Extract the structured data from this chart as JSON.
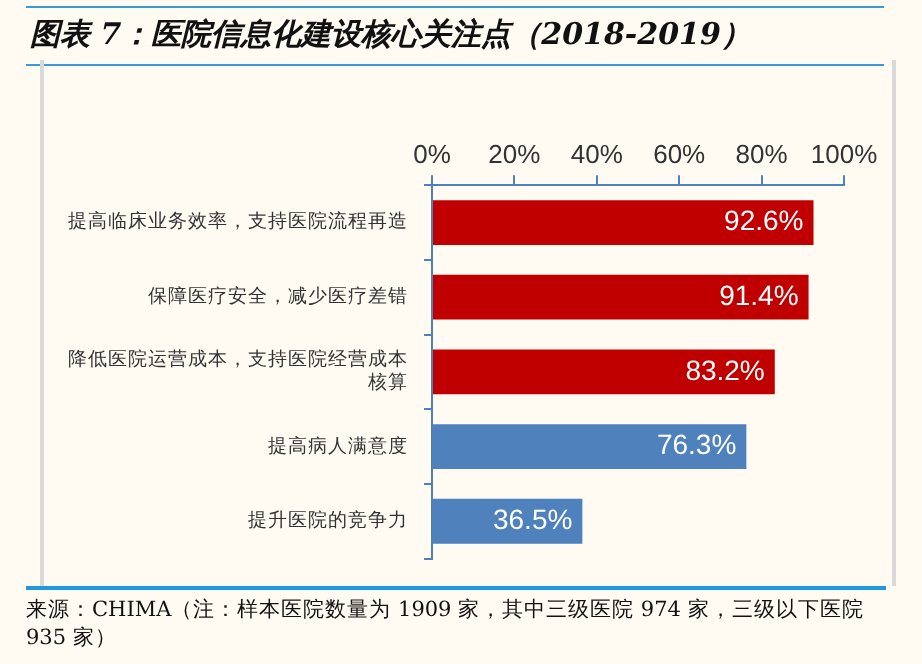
{
  "chart_data": {
    "type": "bar",
    "orientation": "horizontal",
    "title": "图表 7：医院信息化建设核心关注点（2018-2019）",
    "categories": [
      "提高临床业务效率，支持医院流程再造",
      "保障医疗安全，减少医疗差错",
      "降低医院运营成本，支持医院经营成本核算",
      "提高病人满意度",
      "提升医院的竞争力"
    ],
    "values": [
      92.6,
      91.4,
      83.2,
      76.3,
      36.5
    ],
    "colors": [
      "#c00000",
      "#c00000",
      "#c00000",
      "#4f81bd",
      "#4f81bd"
    ],
    "value_labels": [
      "92.6%",
      "91.4%",
      "83.2%",
      "76.3%",
      "36.5%"
    ],
    "xlim": [
      0,
      100
    ],
    "xticks": [
      {
        "value": 0,
        "label": "0%"
      },
      {
        "value": 20,
        "label": "20%"
      },
      {
        "value": 40,
        "label": "40%"
      },
      {
        "value": 60,
        "label": "60%"
      },
      {
        "value": 80,
        "label": "80%"
      },
      {
        "value": 100,
        "label": "100%"
      }
    ],
    "grid": false,
    "legend": false,
    "annotations": [
      "来源：CHIMA（注：样本医院数量为 1909 家，其中三级医院 974 家，三级以下医院 935 家）"
    ]
  }
}
